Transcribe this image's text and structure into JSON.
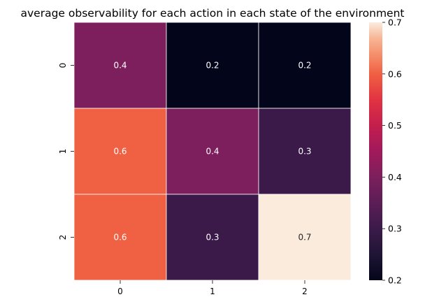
{
  "chart_data": {
    "type": "heatmap",
    "title": "average observability for each action in each state of the environment",
    "xlabel": "",
    "ylabel": "",
    "x_categories": [
      "0",
      "1",
      "2"
    ],
    "y_categories": [
      "0",
      "1",
      "2"
    ],
    "values": [
      [
        0.4,
        0.2,
        0.2
      ],
      [
        0.6,
        0.4,
        0.3
      ],
      [
        0.6,
        0.3,
        0.7
      ]
    ],
    "annotations": [
      [
        "0.4",
        "0.2",
        "0.2"
      ],
      [
        "0.6",
        "0.4",
        "0.3"
      ],
      [
        "0.6",
        "0.3",
        "0.7"
      ]
    ],
    "colorbar": {
      "range": [
        0.2,
        0.7
      ],
      "ticks": [
        "0.2",
        "0.3",
        "0.4",
        "0.5",
        "0.6",
        "0.7"
      ],
      "colormap": "rocket"
    },
    "grid": false
  }
}
